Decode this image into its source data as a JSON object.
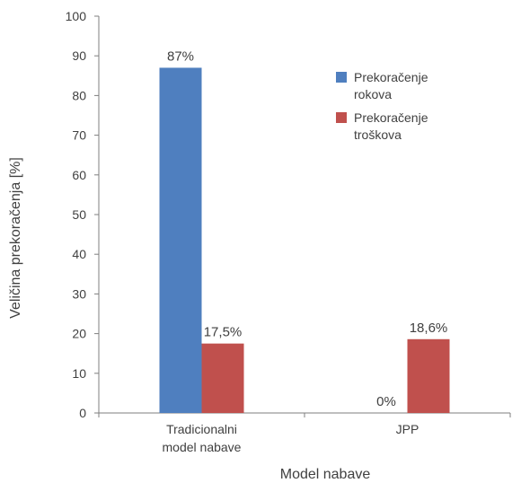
{
  "chart_data": {
    "type": "bar",
    "ylabel": "Veličina prekoračenja [%]",
    "xlabel": "Model nabave",
    "ylim": [
      0,
      100
    ],
    "yticks": [
      0,
      10,
      20,
      30,
      40,
      50,
      60,
      70,
      80,
      90,
      100
    ],
    "categories": [
      [
        "Tradicionalni",
        "model nabave"
      ],
      [
        "JPP"
      ]
    ],
    "series": [
      {
        "name": [
          "Prekoračenje",
          "rokova"
        ],
        "color": "#4f7fbf",
        "values": [
          87,
          0
        ],
        "data_labels": [
          "87%",
          "0%"
        ]
      },
      {
        "name": [
          "Prekoračenje",
          "troškova"
        ],
        "color": "#c0504d",
        "values": [
          17.5,
          18.6
        ],
        "data_labels": [
          "17,5%",
          "18,6%"
        ]
      }
    ],
    "legend": "top-right",
    "grid": false
  }
}
